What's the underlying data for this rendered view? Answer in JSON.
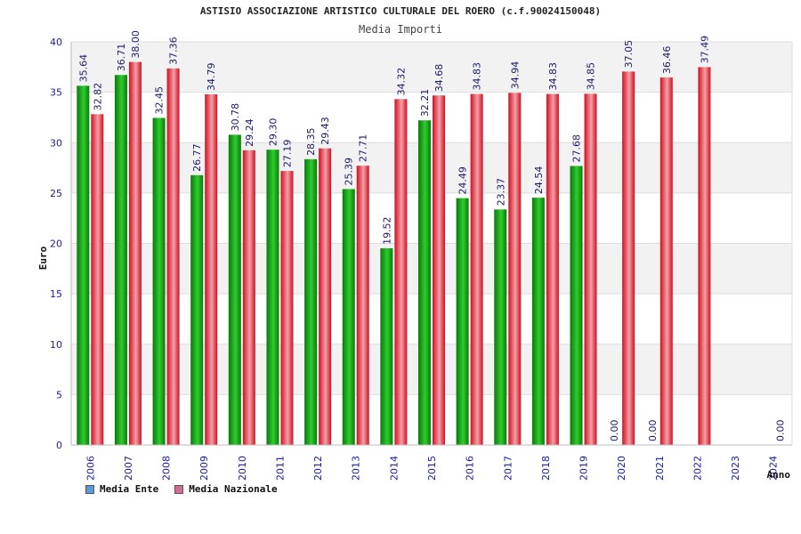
{
  "colors": {
    "ente_dark": "#0a7a0a",
    "ente_light": "#2ecc2e",
    "naz_dark": "#d10f1f",
    "naz_light": "#f2a0a8",
    "legend_ente": "#5b9bd5",
    "legend_naz": "#d06b9a",
    "axis_text": "#1a1aa0",
    "band": "#f2f2f2"
  },
  "chart_data": {
    "type": "bar",
    "title": "ASTISIO ASSOCIAZIONE ARTISTICO CULTURALE DEL ROERO (c.f.90024150048)",
    "subtitle": "Media Importi",
    "xlabel": "Anno",
    "ylabel": "Euro",
    "ylim": [
      0,
      40
    ],
    "yticks": [
      0,
      5,
      10,
      15,
      20,
      25,
      30,
      35,
      40
    ],
    "grid": true,
    "legend_position": "bottom-left",
    "categories": [
      "2006",
      "2007",
      "2008",
      "2009",
      "2010",
      "2011",
      "2012",
      "2013",
      "2014",
      "2015",
      "2016",
      "2017",
      "2018",
      "2019",
      "2020",
      "2021",
      "2022",
      "2023",
      "2024"
    ],
    "series": [
      {
        "name": "Media Ente",
        "values": [
          35.64,
          36.71,
          32.45,
          26.77,
          30.78,
          29.3,
          28.35,
          25.39,
          19.52,
          32.21,
          24.49,
          23.37,
          24.54,
          27.68,
          0.0,
          0.0,
          null,
          null,
          null
        ],
        "labels": [
          "35.64",
          "36.71",
          "32.45",
          "26.77",
          "30.78",
          "29.30",
          "28.35",
          "25.39",
          "19.52",
          "32.21",
          "24.49",
          "23.37",
          "24.54",
          "27.68",
          "0.00",
          "0.00",
          "",
          "",
          ""
        ]
      },
      {
        "name": "Media Nazionale",
        "values": [
          32.82,
          38.0,
          37.36,
          34.79,
          29.24,
          27.19,
          29.43,
          27.71,
          34.32,
          34.68,
          34.83,
          34.94,
          34.83,
          34.85,
          37.05,
          36.46,
          37.49,
          null,
          0.0
        ],
        "labels": [
          "32.82",
          "38.00",
          "37.36",
          "34.79",
          "29.24",
          "27.19",
          "29.43",
          "27.71",
          "34.32",
          "34.68",
          "34.83",
          "34.94",
          "34.83",
          "34.85",
          "37.05",
          "36.46",
          "37.49",
          "",
          "0.00"
        ]
      }
    ]
  }
}
